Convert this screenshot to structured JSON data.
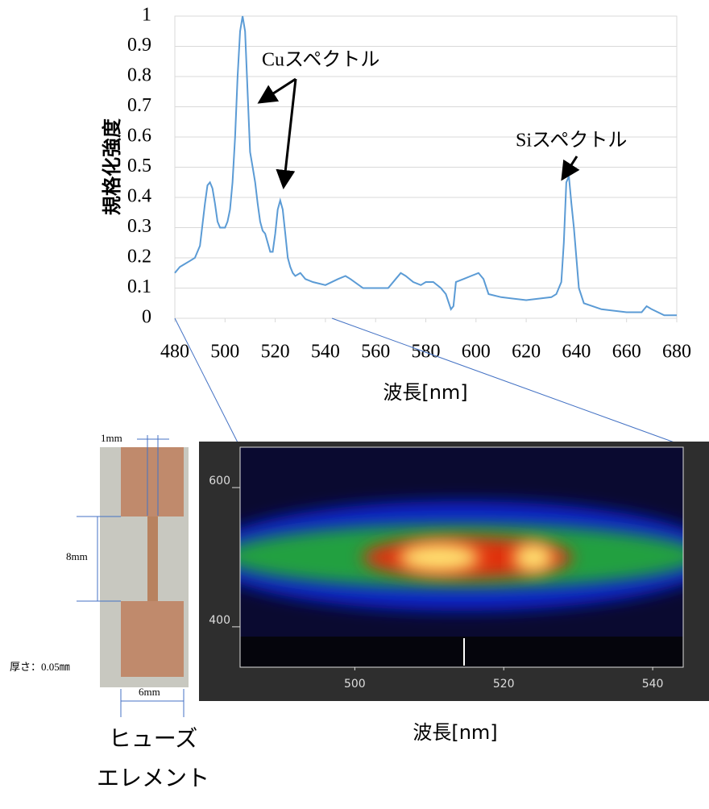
{
  "chart_data": {
    "type": "line",
    "y_label": "規格化強度",
    "x_label": "波長[nm]",
    "annotations": [
      "Cuスペクトル",
      "Siスペクトル"
    ],
    "color": "#5b9bd5",
    "grid": true,
    "xlim": [
      480,
      680
    ],
    "ylim": [
      0,
      1
    ],
    "xticks": [
      480,
      500,
      520,
      540,
      560,
      580,
      600,
      620,
      640,
      660,
      680
    ],
    "yticks": [
      0,
      0.1,
      0.2,
      0.3,
      0.4,
      0.5,
      0.6,
      0.7,
      0.8,
      0.9,
      1
    ],
    "x": [
      480,
      482,
      484,
      486,
      488,
      490,
      492,
      493,
      494,
      495,
      496,
      497,
      498,
      499,
      500,
      501,
      502,
      503,
      504,
      505,
      506,
      507,
      508,
      509,
      510,
      511,
      512,
      513,
      514,
      515,
      516,
      517,
      518,
      519,
      520,
      521,
      522,
      523,
      524,
      525,
      526,
      527,
      528,
      530,
      532,
      535,
      540,
      545,
      548,
      550,
      555,
      560,
      565,
      568,
      570,
      572,
      575,
      578,
      580,
      583,
      586,
      588,
      590,
      591,
      592,
      595,
      598,
      601,
      603,
      605,
      610,
      620,
      630,
      632,
      634,
      635,
      636,
      637,
      638,
      639,
      640,
      641,
      643,
      650,
      660,
      666,
      668,
      670,
      675,
      680
    ],
    "values": [
      0.15,
      0.17,
      0.18,
      0.19,
      0.2,
      0.24,
      0.38,
      0.44,
      0.45,
      0.43,
      0.38,
      0.32,
      0.3,
      0.3,
      0.3,
      0.32,
      0.36,
      0.45,
      0.6,
      0.8,
      0.95,
      1.0,
      0.95,
      0.75,
      0.55,
      0.5,
      0.45,
      0.38,
      0.32,
      0.29,
      0.28,
      0.25,
      0.22,
      0.22,
      0.28,
      0.36,
      0.39,
      0.36,
      0.28,
      0.2,
      0.17,
      0.15,
      0.14,
      0.15,
      0.13,
      0.12,
      0.11,
      0.13,
      0.14,
      0.13,
      0.1,
      0.1,
      0.1,
      0.13,
      0.15,
      0.14,
      0.12,
      0.11,
      0.12,
      0.12,
      0.1,
      0.08,
      0.03,
      0.04,
      0.12,
      0.13,
      0.14,
      0.15,
      0.13,
      0.08,
      0.07,
      0.06,
      0.07,
      0.08,
      0.12,
      0.25,
      0.45,
      0.47,
      0.38,
      0.3,
      0.2,
      0.1,
      0.05,
      0.03,
      0.02,
      0.02,
      0.04,
      0.03,
      0.01,
      0.01
    ]
  },
  "spectrogram": {
    "x_label": "波長[nm]",
    "xlim": [
      484.6,
      544.1
    ],
    "ylim": [
      342,
      658
    ],
    "xticks": [
      500,
      520,
      540
    ],
    "yticks": [
      400,
      600
    ]
  },
  "fuse": {
    "width_label": "1mm",
    "length_label": "8mm",
    "thickness_label": "厚さ：0.05㎜",
    "total_width_label": "6mm",
    "caption": [
      "ヒューズ",
      "エレメント"
    ]
  }
}
